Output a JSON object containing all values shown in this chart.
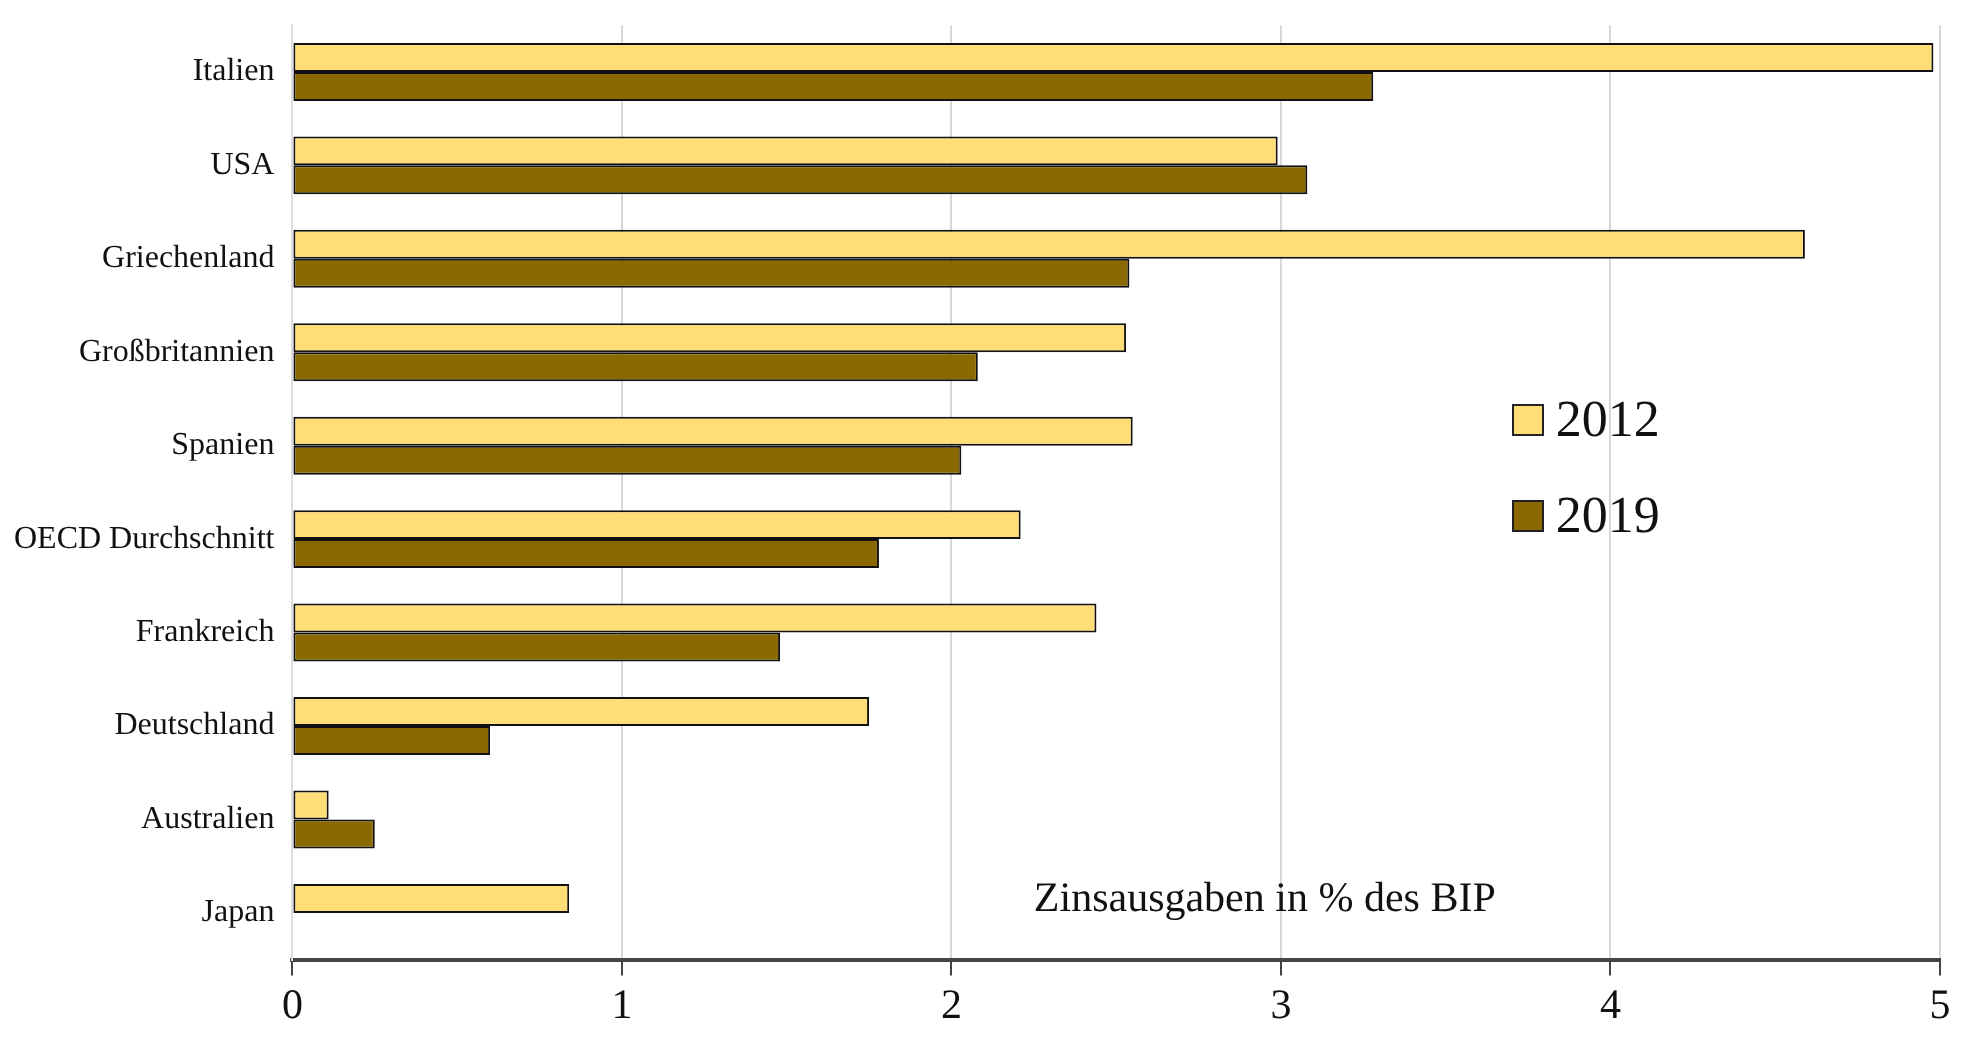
{
  "chart_data": {
    "type": "bar",
    "orientation": "horizontal",
    "categories": [
      "Italien",
      "USA",
      "Griechenland",
      "Großbritannien",
      "Spanien",
      "OECD Durchschnitt",
      "Frankreich",
      "Deutschland",
      "Australien",
      "Japan"
    ],
    "series": [
      {
        "name": "2012",
        "color": "#ffdd77",
        "values": [
          4.98,
          2.99,
          4.59,
          2.53,
          2.55,
          2.21,
          2.44,
          1.75,
          0.11,
          0.84
        ]
      },
      {
        "name": "2019",
        "color": "#8a6a00",
        "values": [
          3.28,
          3.08,
          2.54,
          2.08,
          2.03,
          1.78,
          1.48,
          0.6,
          0.25,
          null
        ]
      }
    ],
    "xlim": [
      0,
      5
    ],
    "xticks": [
      0,
      1,
      2,
      3,
      4,
      5
    ],
    "grid": "x",
    "legend": "right",
    "annotations": [
      "Zinsausgaben in % des BIP"
    ]
  }
}
